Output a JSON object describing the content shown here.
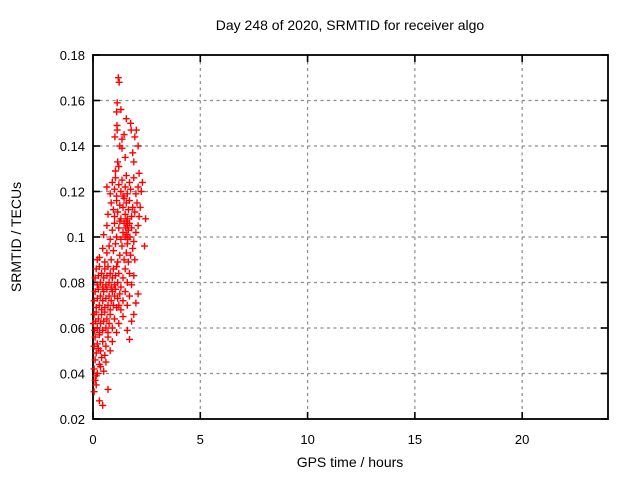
{
  "page": {
    "background": "#ffffff"
  },
  "chart_data": {
    "type": "scatter",
    "title": "Day 248 of 2020, SRMTID for receiver algo",
    "xlabel": "GPS time / hours",
    "ylabel": "SRMTID / TECUs",
    "xlim": [
      0,
      24
    ],
    "ylim": [
      0.02,
      0.18
    ],
    "xticks": [
      0,
      5,
      10,
      15,
      20
    ],
    "xtick_labels": [
      "0",
      "5",
      "10",
      "15",
      "20"
    ],
    "yticks": [
      0.02,
      0.04,
      0.06,
      0.08,
      0.1,
      0.12,
      0.14,
      0.16,
      0.18
    ],
    "ytick_labels": [
      "0.02",
      "0.04",
      "0.06",
      "0.08",
      "0.1",
      "0.12",
      "0.14",
      "0.16",
      "0.18"
    ],
    "grid": true,
    "grid_style": "dashed",
    "grid_color": "#8c8c8c",
    "legend": "none",
    "marker": {
      "shape": "plus",
      "color": "#ff0000",
      "size": 7
    },
    "series": [
      {
        "name": "SRMTID",
        "color": "#ff0000",
        "points": [
          [
            1.18,
            0.17
          ],
          [
            1.22,
            0.168
          ],
          [
            1.13,
            0.159
          ],
          [
            1.3,
            0.156
          ],
          [
            1.1,
            0.155
          ],
          [
            1.12,
            0.149
          ],
          [
            1.13,
            0.147
          ],
          [
            1.75,
            0.15
          ],
          [
            1.78,
            0.147
          ],
          [
            1.45,
            0.145
          ],
          [
            1.02,
            0.144
          ],
          [
            1.55,
            0.152
          ],
          [
            2.02,
            0.147
          ],
          [
            1.95,
            0.144
          ],
          [
            1.35,
            0.143
          ],
          [
            1.25,
            0.14
          ],
          [
            1.35,
            0.139
          ],
          [
            1.15,
            0.133
          ],
          [
            1.2,
            0.131
          ],
          [
            1.85,
            0.137
          ],
          [
            1.9,
            0.133
          ],
          [
            2.1,
            0.14
          ],
          [
            1.05,
            0.129
          ],
          [
            1.5,
            0.135
          ],
          [
            2.15,
            0.128
          ],
          [
            0.65,
            0.122
          ],
          [
            0.8,
            0.119
          ],
          [
            0.9,
            0.124
          ],
          [
            1.0,
            0.121
          ],
          [
            1.05,
            0.126
          ],
          [
            1.1,
            0.118
          ],
          [
            1.2,
            0.123
          ],
          [
            1.3,
            0.12
          ],
          [
            1.35,
            0.125
          ],
          [
            1.4,
            0.118
          ],
          [
            1.5,
            0.122
          ],
          [
            1.55,
            0.127
          ],
          [
            1.6,
            0.119
          ],
          [
            1.7,
            0.124
          ],
          [
            1.75,
            0.121
          ],
          [
            1.9,
            0.126
          ],
          [
            2.0,
            0.119
          ],
          [
            2.1,
            0.122
          ],
          [
            2.25,
            0.12
          ],
          [
            2.3,
            0.124
          ],
          [
            0.7,
            0.11
          ],
          [
            0.85,
            0.115
          ],
          [
            0.95,
            0.112
          ],
          [
            1.0,
            0.109
          ],
          [
            1.1,
            0.116
          ],
          [
            1.15,
            0.111
          ],
          [
            1.25,
            0.114
          ],
          [
            1.3,
            0.108
          ],
          [
            1.4,
            0.113
          ],
          [
            1.45,
            0.117
          ],
          [
            1.5,
            0.11
          ],
          [
            1.55,
            0.115
          ],
          [
            1.6,
            0.108
          ],
          [
            1.65,
            0.112
          ],
          [
            1.7,
            0.116
          ],
          [
            1.8,
            0.109
          ],
          [
            1.85,
            0.113
          ],
          [
            1.95,
            0.111
          ],
          [
            2.05,
            0.115
          ],
          [
            2.15,
            0.109
          ],
          [
            2.2,
            0.113
          ],
          [
            2.45,
            0.108
          ],
          [
            0.5,
            0.101
          ],
          [
            0.65,
            0.105
          ],
          [
            0.8,
            0.099
          ],
          [
            0.9,
            0.103
          ],
          [
            1.0,
            0.106
          ],
          [
            1.1,
            0.1
          ],
          [
            1.2,
            0.104
          ],
          [
            1.25,
            0.107
          ],
          [
            1.3,
            0.099
          ],
          [
            1.4,
            0.102
          ],
          [
            1.45,
            0.106
          ],
          [
            1.5,
            0.1
          ],
          [
            1.52,
            0.104
          ],
          [
            1.55,
            0.107
          ],
          [
            1.58,
            0.101
          ],
          [
            1.6,
            0.105
          ],
          [
            1.62,
            0.099
          ],
          [
            1.65,
            0.103
          ],
          [
            1.7,
            0.106
          ],
          [
            1.72,
            0.1
          ],
          [
            1.8,
            0.104
          ],
          [
            1.9,
            0.098
          ],
          [
            2.0,
            0.102
          ],
          [
            2.1,
            0.105
          ],
          [
            0.2,
            0.09
          ],
          [
            0.3,
            0.091
          ],
          [
            0.45,
            0.095
          ],
          [
            0.55,
            0.089
          ],
          [
            0.65,
            0.093
          ],
          [
            0.75,
            0.096
          ],
          [
            0.85,
            0.09
          ],
          [
            0.95,
            0.094
          ],
          [
            1.05,
            0.097
          ],
          [
            1.15,
            0.089
          ],
          [
            1.25,
            0.092
          ],
          [
            1.35,
            0.096
          ],
          [
            1.45,
            0.09
          ],
          [
            1.55,
            0.093
          ],
          [
            1.6,
            0.097
          ],
          [
            1.65,
            0.089
          ],
          [
            1.75,
            0.092
          ],
          [
            1.85,
            0.095
          ],
          [
            1.95,
            0.09
          ],
          [
            2.4,
            0.096
          ],
          [
            0.1,
            0.082
          ],
          [
            0.15,
            0.086
          ],
          [
            0.2,
            0.079
          ],
          [
            0.25,
            0.083
          ],
          [
            0.3,
            0.087
          ],
          [
            0.35,
            0.08
          ],
          [
            0.4,
            0.084
          ],
          [
            0.45,
            0.078
          ],
          [
            0.5,
            0.082
          ],
          [
            0.55,
            0.086
          ],
          [
            0.6,
            0.079
          ],
          [
            0.65,
            0.083
          ],
          [
            0.7,
            0.087
          ],
          [
            0.75,
            0.08
          ],
          [
            0.8,
            0.084
          ],
          [
            0.85,
            0.078
          ],
          [
            0.9,
            0.082
          ],
          [
            0.95,
            0.086
          ],
          [
            1.0,
            0.079
          ],
          [
            1.05,
            0.083
          ],
          [
            1.1,
            0.087
          ],
          [
            1.15,
            0.08
          ],
          [
            1.2,
            0.084
          ],
          [
            1.3,
            0.078
          ],
          [
            1.4,
            0.082
          ],
          [
            1.5,
            0.086
          ],
          [
            1.6,
            0.08
          ],
          [
            1.7,
            0.084
          ],
          [
            1.8,
            0.079
          ],
          [
            1.9,
            0.083
          ],
          [
            0.05,
            0.072
          ],
          [
            0.1,
            0.076
          ],
          [
            0.15,
            0.069
          ],
          [
            0.2,
            0.073
          ],
          [
            0.25,
            0.077
          ],
          [
            0.3,
            0.07
          ],
          [
            0.35,
            0.074
          ],
          [
            0.4,
            0.068
          ],
          [
            0.45,
            0.072
          ],
          [
            0.5,
            0.076
          ],
          [
            0.55,
            0.069
          ],
          [
            0.6,
            0.073
          ],
          [
            0.65,
            0.077
          ],
          [
            0.7,
            0.07
          ],
          [
            0.75,
            0.074
          ],
          [
            0.8,
            0.068
          ],
          [
            0.85,
            0.072
          ],
          [
            0.9,
            0.076
          ],
          [
            0.95,
            0.07
          ],
          [
            1.0,
            0.074
          ],
          [
            1.05,
            0.077
          ],
          [
            1.1,
            0.069
          ],
          [
            1.15,
            0.073
          ],
          [
            1.2,
            0.07
          ],
          [
            1.25,
            0.075
          ],
          [
            1.3,
            0.068
          ],
          [
            1.4,
            0.072
          ],
          [
            1.5,
            0.076
          ],
          [
            1.6,
            0.07
          ],
          [
            1.7,
            0.074
          ],
          [
            2.0,
            0.071
          ],
          [
            2.1,
            0.075
          ],
          [
            0.02,
            0.062
          ],
          [
            0.05,
            0.066
          ],
          [
            0.08,
            0.059
          ],
          [
            0.12,
            0.063
          ],
          [
            0.15,
            0.067
          ],
          [
            0.2,
            0.06
          ],
          [
            0.25,
            0.064
          ],
          [
            0.3,
            0.058
          ],
          [
            0.35,
            0.062
          ],
          [
            0.4,
            0.066
          ],
          [
            0.45,
            0.059
          ],
          [
            0.5,
            0.063
          ],
          [
            0.55,
            0.067
          ],
          [
            0.6,
            0.06
          ],
          [
            0.65,
            0.064
          ],
          [
            0.7,
            0.058
          ],
          [
            0.75,
            0.062
          ],
          [
            0.8,
            0.066
          ],
          [
            0.9,
            0.06
          ],
          [
            1.0,
            0.064
          ],
          [
            1.1,
            0.058
          ],
          [
            1.2,
            0.062
          ],
          [
            1.4,
            0.065
          ],
          [
            1.6,
            0.059
          ],
          [
            1.8,
            0.063
          ],
          [
            1.9,
            0.066
          ],
          [
            0.05,
            0.052
          ],
          [
            0.1,
            0.056
          ],
          [
            0.15,
            0.049
          ],
          [
            0.2,
            0.053
          ],
          [
            0.3,
            0.057
          ],
          [
            0.35,
            0.05
          ],
          [
            0.45,
            0.054
          ],
          [
            0.55,
            0.048
          ],
          [
            0.6,
            0.052
          ],
          [
            0.7,
            0.056
          ],
          [
            0.8,
            0.05
          ],
          [
            0.9,
            0.054
          ],
          [
            1.7,
            0.055
          ],
          [
            0.25,
            0.051
          ],
          [
            0.05,
            0.042
          ],
          [
            0.1,
            0.046
          ],
          [
            0.2,
            0.04
          ],
          [
            0.3,
            0.044
          ],
          [
            0.4,
            0.047
          ],
          [
            0.5,
            0.041
          ],
          [
            0.6,
            0.045
          ],
          [
            0.15,
            0.039
          ],
          [
            0.35,
            0.043
          ],
          [
            0.05,
            0.032
          ],
          [
            0.15,
            0.035
          ],
          [
            0.3,
            0.028
          ],
          [
            0.7,
            0.033
          ],
          [
            0.1,
            0.037
          ],
          [
            0.45,
            0.026
          ]
        ]
      }
    ]
  }
}
